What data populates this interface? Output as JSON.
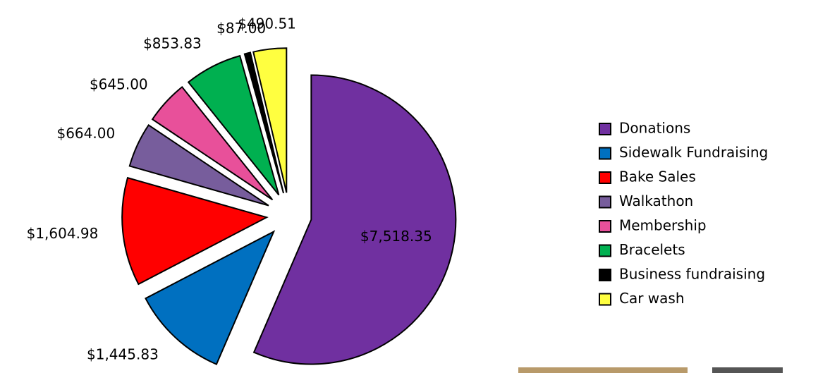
{
  "chart_data": {
    "type": "pie",
    "categories": [
      "Donations",
      "Sidewalk Fundraising",
      "Bake Sales",
      "Walkathon",
      "Membership",
      "Bracelets",
      "Business fundraising",
      "Car wash"
    ],
    "values": [
      7518.35,
      1445.83,
      1604.98,
      664.0,
      645.0,
      853.83,
      87.0,
      490.51
    ],
    "value_labels": [
      "$7,518.35",
      "$1,445.83",
      "$1,604.98",
      "$664.00",
      "$645.00",
      "$853.83",
      "$87.00",
      "$490.51"
    ],
    "colors": [
      "#7030a0",
      "#0070c0",
      "#ff0000",
      "#775d9c",
      "#e8509a",
      "#00b050",
      "#000000",
      "#ffff40"
    ],
    "legend": "right"
  }
}
